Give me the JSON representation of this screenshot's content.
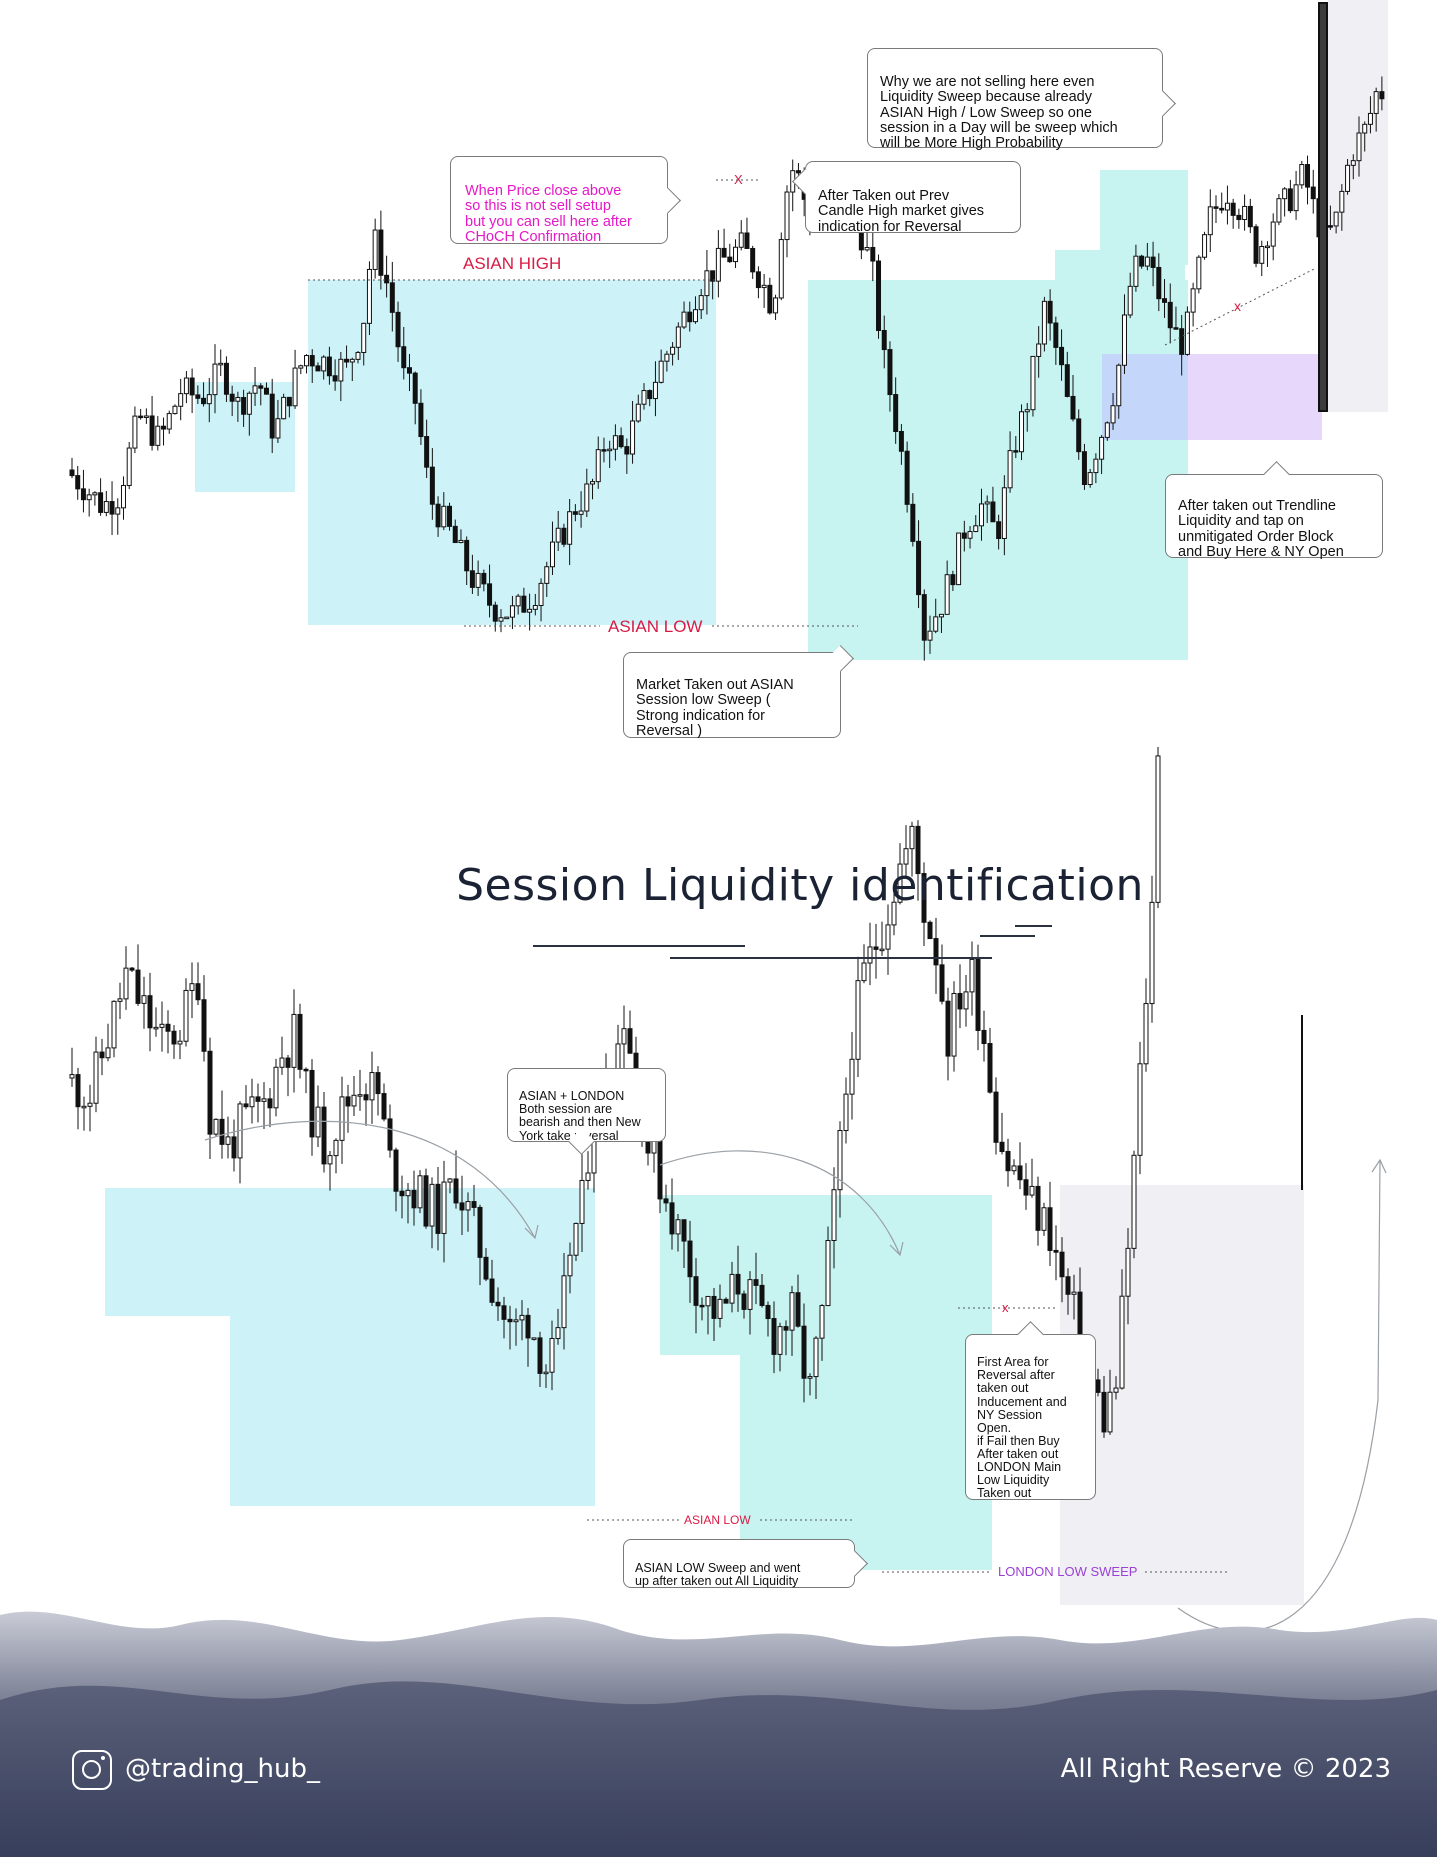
{
  "title": "Session Liquidity identification",
  "footer": {
    "handle": "@trading_hub_",
    "copyright": "All Right Reserve © 2023",
    "icon": "instagram-icon"
  },
  "colors": {
    "asian_zone": "#cdf3f8",
    "london_zone": "#c7f4f1",
    "ny_zone": "#efeff4",
    "order_block_blue": "#c5d6fb",
    "order_block_purple": "#e6d7fb",
    "candle": "#111111",
    "level_label_red": "#d81b45",
    "callout_magenta": "#e619c8",
    "london_label_purple": "#9b40d6"
  },
  "chart1": {
    "levels": {
      "asian_high": "ASIAN  HIGH",
      "asian_low": "ASIAN LOW",
      "x_mark_top": "X",
      "x_mark_trend": "x"
    },
    "callouts": {
      "choch": "When Price close above\nso this is not sell setup\nbut you can sell here after\nCHoCH Confirmation",
      "prev_candle": "After Taken out Prev\nCandle High market gives\nindication for Reversal",
      "why_not_sell": "Why we are not selling here even\nLiquidity  Sweep because already\nASIAN High / Low Sweep so one\nsession in a Day will be sweep which\nwill be More High Probability",
      "asian_low_sweep": "Market Taken out ASIAN\nSession low Sweep (\nStrong indication for\nReversal )",
      "trendline": "After taken out Trendline\nLiquidity and tap on\nunmitigated Order Block\nand Buy Here & NY Open"
    }
  },
  "chart2": {
    "levels": {
      "asian_low": "ASIAN LOW",
      "london_low": "LONDON LOW  SWEEP",
      "x_mark": "x"
    },
    "callouts": {
      "asian_london": "ASIAN + LONDON\nBoth session are\nbearish and then New\nYork take reversal",
      "asian_low_sweep": "ASIAN LOW Sweep and went\nup after taken out All Liquidity",
      "first_area": "First  Area for\nReversal after\ntaken out\nInducement and\nNY Session\nOpen.\nif Fail then Buy\nAfter taken out\nLONDON Main\nLow Liquidity\nTaken out"
    }
  },
  "chart_data": [
    {
      "type": "candlestick",
      "title": "",
      "price_path": [
        [
          0,
          1.0
        ],
        [
          6,
          0.96
        ],
        [
          14,
          0.9
        ],
        [
          20,
          0.93
        ],
        [
          28,
          1.15
        ],
        [
          36,
          1.08
        ],
        [
          44,
          1.22
        ],
        [
          52,
          1.2
        ],
        [
          60,
          1.28
        ],
        [
          66,
          1.18
        ],
        [
          74,
          1.25
        ],
        [
          80,
          1.1
        ],
        [
          86,
          1.22
        ],
        [
          92,
          1.32
        ],
        [
          100,
          1.3
        ],
        [
          108,
          1.28
        ],
        [
          114,
          1.4
        ],
        [
          118,
          1.65
        ],
        [
          124,
          1.5
        ],
        [
          130,
          1.25
        ],
        [
          134,
          1.2
        ],
        [
          140,
          0.92
        ],
        [
          148,
          0.82
        ],
        [
          156,
          0.7
        ],
        [
          164,
          0.62
        ],
        [
          172,
          0.6
        ],
        [
          180,
          0.66
        ],
        [
          188,
          0.78
        ],
        [
          196,
          0.9
        ],
        [
          202,
          0.95
        ],
        [
          208,
          1.1
        ],
        [
          214,
          1.05
        ],
        [
          220,
          1.15
        ],
        [
          228,
          1.28
        ],
        [
          236,
          1.4
        ],
        [
          244,
          1.52
        ],
        [
          252,
          1.58
        ],
        [
          260,
          1.62
        ],
        [
          266,
          1.55
        ],
        [
          272,
          1.45
        ],
        [
          276,
          1.75
        ],
        [
          280,
          1.85
        ],
        [
          286,
          1.7
        ],
        [
          292,
          1.75
        ],
        [
          298,
          1.82
        ],
        [
          304,
          1.7
        ],
        [
          310,
          1.55
        ],
        [
          314,
          1.32
        ],
        [
          320,
          1.1
        ],
        [
          326,
          0.82
        ],
        [
          330,
          0.55
        ],
        [
          336,
          0.62
        ],
        [
          340,
          0.7
        ],
        [
          346,
          0.85
        ],
        [
          352,
          0.9
        ],
        [
          358,
          0.82
        ],
        [
          364,
          1.05
        ],
        [
          370,
          1.2
        ],
        [
          376,
          1.45
        ],
        [
          382,
          1.3
        ],
        [
          386,
          1.15
        ],
        [
          392,
          0.98
        ],
        [
          398,
          1.1
        ],
        [
          404,
          1.25
        ],
        [
          410,
          1.55
        ],
        [
          416,
          1.58
        ],
        [
          422,
          1.45
        ],
        [
          426,
          1.38
        ],
        [
          430,
          1.35
        ],
        [
          434,
          1.5
        ],
        [
          440,
          1.7
        ],
        [
          446,
          1.78
        ],
        [
          452,
          1.72
        ],
        [
          458,
          1.6
        ],
        [
          464,
          1.7
        ],
        [
          470,
          1.75
        ],
        [
          476,
          1.82
        ],
        [
          480,
          1.72
        ],
        [
          484,
          1.64
        ],
        [
          488,
          1.68
        ],
        [
          494,
          1.88
        ],
        [
          500,
          1.95
        ],
        [
          504,
          2.05
        ]
      ],
      "levels": [
        {
          "name": "ASIAN  HIGH",
          "y": 1.72
        },
        {
          "name": "ASIAN LOW",
          "y": 0.62
        }
      ]
    },
    {
      "type": "candlestick",
      "title": "",
      "price_path": [
        [
          0,
          1.0
        ],
        [
          8,
          0.98
        ],
        [
          14,
          1.05
        ],
        [
          20,
          1.12
        ],
        [
          26,
          1.08
        ],
        [
          32,
          1.04
        ],
        [
          38,
          1.06
        ],
        [
          44,
          1.12
        ],
        [
          48,
          0.96
        ],
        [
          54,
          0.92
        ],
        [
          60,
          0.95
        ],
        [
          66,
          0.97
        ],
        [
          72,
          1.03
        ],
        [
          76,
          1.05
        ],
        [
          80,
          0.98
        ],
        [
          86,
          0.92
        ],
        [
          92,
          0.96
        ],
        [
          98,
          1.0
        ],
        [
          104,
          0.98
        ],
        [
          108,
          0.9
        ],
        [
          112,
          0.88
        ],
        [
          118,
          0.86
        ],
        [
          124,
          0.84
        ],
        [
          130,
          0.88
        ],
        [
          136,
          0.82
        ],
        [
          142,
          0.76
        ],
        [
          148,
          0.7
        ],
        [
          154,
          0.72
        ],
        [
          160,
          0.66
        ],
        [
          164,
          0.68
        ],
        [
          168,
          0.8
        ],
        [
          172,
          0.85
        ],
        [
          176,
          0.98
        ],
        [
          182,
          1.0
        ],
        [
          186,
          1.08
        ],
        [
          190,
          1.0
        ],
        [
          194,
          0.92
        ],
        [
          200,
          0.86
        ],
        [
          206,
          0.8
        ],
        [
          212,
          0.74
        ],
        [
          218,
          0.72
        ],
        [
          224,
          0.76
        ],
        [
          230,
          0.73
        ],
        [
          236,
          0.7
        ],
        [
          242,
          0.72
        ],
        [
          248,
          0.63
        ],
        [
          252,
          0.72
        ],
        [
          256,
          0.85
        ],
        [
          262,
          1.05
        ],
        [
          266,
          1.12
        ],
        [
          270,
          1.16
        ],
        [
          274,
          1.2
        ],
        [
          278,
          1.25
        ],
        [
          282,
          1.28
        ],
        [
          286,
          1.2
        ],
        [
          290,
          1.15
        ],
        [
          294,
          1.05
        ],
        [
          298,
          1.1
        ],
        [
          302,
          1.12
        ],
        [
          306,
          1.05
        ],
        [
          310,
          0.95
        ],
        [
          314,
          0.9
        ],
        [
          318,
          0.88
        ],
        [
          322,
          0.85
        ],
        [
          328,
          0.82
        ],
        [
          332,
          0.76
        ],
        [
          336,
          0.72
        ],
        [
          340,
          0.66
        ],
        [
          346,
          0.6
        ],
        [
          350,
          0.64
        ],
        [
          354,
          0.8
        ],
        [
          358,
          1.0
        ],
        [
          362,
          1.2
        ],
        [
          364,
          1.4
        ]
      ],
      "levels": [
        {
          "name": "ASIAN LOW",
          "y": 0.66
        },
        {
          "name": "LONDON LOW  SWEEP",
          "y": 0.6
        }
      ]
    }
  ]
}
